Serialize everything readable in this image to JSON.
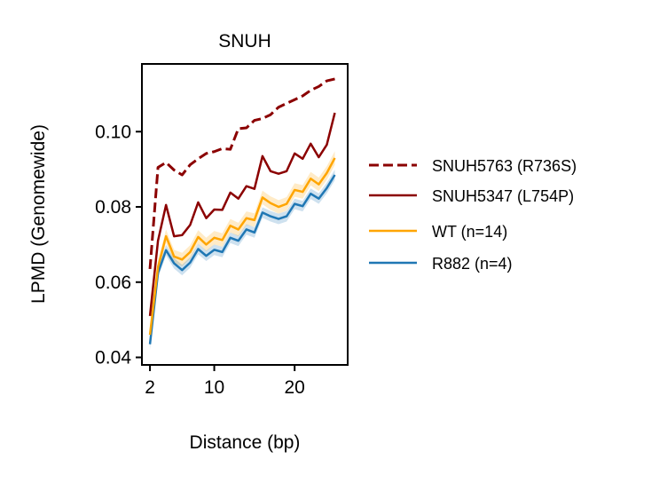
{
  "chart_data": {
    "type": "line",
    "title": "SNUH",
    "xlabel": "Distance (bp)",
    "ylabel": "LPMD (Genomewide)",
    "xlim": [
      1.0,
      26.6
    ],
    "ylim": [
      0.038,
      0.118
    ],
    "xticks": [
      2,
      10,
      20
    ],
    "yticks": [
      0.04,
      0.06,
      0.08,
      0.1
    ],
    "ytick_labels": [
      "0.04",
      "0.06",
      "0.08",
      "0.10"
    ],
    "grid": false,
    "legend_position": "right-outside",
    "x": [
      2,
      3,
      4,
      5,
      6,
      7,
      8,
      9,
      10,
      11,
      12,
      13,
      14,
      15,
      16,
      17,
      18,
      19,
      20,
      21,
      22,
      23,
      24,
      25
    ],
    "series": [
      {
        "name": "SNUH5763 (R736S)",
        "color": "#8b0000",
        "style": "dashed",
        "values": [
          0.0635,
          0.0905,
          0.0918,
          0.0898,
          0.0885,
          0.0912,
          0.0928,
          0.0942,
          0.0947,
          0.0955,
          0.0953,
          0.1008,
          0.101,
          0.103,
          0.1035,
          0.1045,
          0.1065,
          0.1075,
          0.1085,
          0.1095,
          0.111,
          0.112,
          0.1135,
          0.114
        ]
      },
      {
        "name": "SNUH5347 (L754P)",
        "color": "#8b0000",
        "style": "solid",
        "values": [
          0.051,
          0.071,
          0.0805,
          0.0722,
          0.0725,
          0.0752,
          0.0812,
          0.077,
          0.0793,
          0.0792,
          0.0838,
          0.0822,
          0.0855,
          0.0848,
          0.0935,
          0.0895,
          0.0888,
          0.0895,
          0.0942,
          0.0928,
          0.0968,
          0.0932,
          0.0965,
          0.105
        ]
      },
      {
        "name": "WT (n=14)",
        "color": "#ffa500",
        "style": "solid",
        "band": 0.0018,
        "values": [
          0.046,
          0.064,
          0.0722,
          0.0668,
          0.066,
          0.068,
          0.072,
          0.07,
          0.0718,
          0.0712,
          0.075,
          0.074,
          0.077,
          0.0765,
          0.0825,
          0.081,
          0.08,
          0.0808,
          0.0845,
          0.084,
          0.0875,
          0.086,
          0.089,
          0.093
        ]
      },
      {
        "name": "R882 (n=4)",
        "color": "#1f77b4",
        "style": "solid",
        "band": 0.0014,
        "values": [
          0.0435,
          0.0625,
          0.0685,
          0.065,
          0.0632,
          0.0652,
          0.0688,
          0.067,
          0.0686,
          0.068,
          0.0718,
          0.071,
          0.074,
          0.0732,
          0.0785,
          0.0775,
          0.0768,
          0.0775,
          0.0808,
          0.0802,
          0.0835,
          0.0822,
          0.085,
          0.0885
        ]
      }
    ]
  }
}
